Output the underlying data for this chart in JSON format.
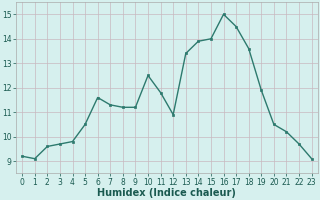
{
  "x": [
    0,
    1,
    2,
    3,
    4,
    5,
    6,
    7,
    8,
    9,
    10,
    11,
    12,
    13,
    14,
    15,
    16,
    17,
    18,
    19,
    20,
    21,
    22,
    23
  ],
  "y": [
    9.2,
    9.1,
    9.6,
    9.7,
    9.8,
    10.5,
    11.6,
    11.3,
    11.2,
    11.2,
    12.5,
    11.8,
    10.9,
    13.4,
    13.9,
    14.0,
    15.0,
    14.5,
    13.6,
    11.9,
    10.5,
    10.2,
    9.7,
    9.1
  ],
  "line_color": "#2d7a6e",
  "marker": "s",
  "markersize": 2.0,
  "linewidth": 1.0,
  "background_color": "#d6f0ee",
  "grid_color": "#c8b8c0",
  "xlabel": "Humidex (Indice chaleur)",
  "xlim": [
    -0.5,
    23.5
  ],
  "ylim": [
    8.5,
    15.5
  ],
  "yticks": [
    9,
    10,
    11,
    12,
    13,
    14,
    15
  ],
  "xticks": [
    0,
    1,
    2,
    3,
    4,
    5,
    6,
    7,
    8,
    9,
    10,
    11,
    12,
    13,
    14,
    15,
    16,
    17,
    18,
    19,
    20,
    21,
    22,
    23
  ],
  "tick_fontsize": 5.5,
  "xlabel_fontsize": 7.0
}
